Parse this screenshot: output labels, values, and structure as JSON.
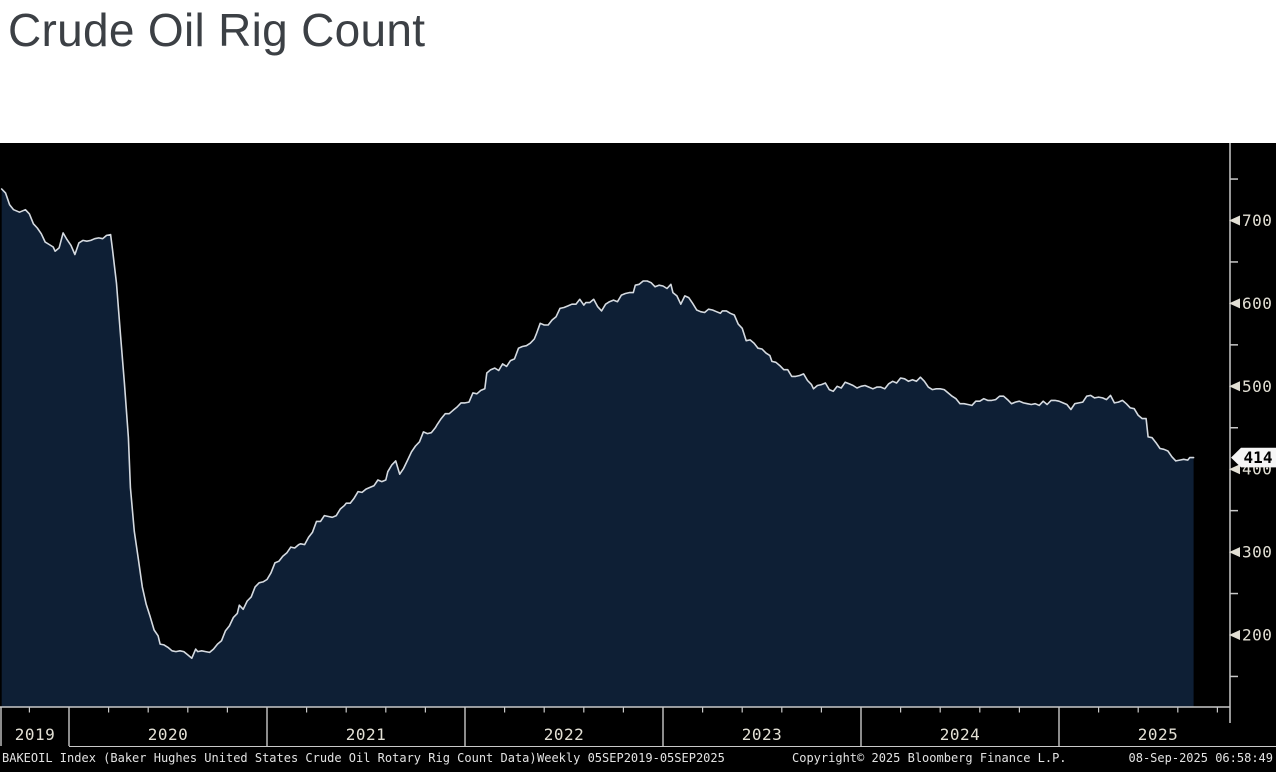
{
  "page": {
    "title": "Crude Oil Rig Count"
  },
  "style": {
    "page_bg": "#ffffff",
    "title_color": "#3c4045",
    "chart_bg": "#000000",
    "area_fill": "#0e1f35",
    "line_color": "#d5dae0",
    "axis_color": "#c9c9c9",
    "tick_label_color": "#e3e0d5",
    "footer_text_color": "#e3e3e3",
    "badge_bg": "#f5f5f5",
    "badge_text": "#000000"
  },
  "chart_data": {
    "type": "area",
    "title": "Crude Oil Rig Count",
    "series_name": "BAKEOIL Index - Baker Hughes United States Crude Oil Rotary Rig Count",
    "x_unit": "decimal_year",
    "xlim": [
      2019.65,
      2025.72
    ],
    "ylim": [
      113,
      793
    ],
    "grid": false,
    "legend": "none",
    "y_axis_side": "right",
    "y_ticks": [
      200,
      300,
      400,
      500,
      600,
      700
    ],
    "y_minor_ticks": [
      150,
      250,
      350,
      450,
      550,
      650,
      750
    ],
    "x_year_dividers": [
      2020,
      2021,
      2022,
      2023,
      2024,
      2025
    ],
    "x_year_labels": [
      "2019",
      "2020",
      "2021",
      "2022",
      "2023",
      "2024",
      "2025"
    ],
    "last_value": 414,
    "last_value_label": "414",
    "points": [
      [
        2019.66,
        738
      ],
      [
        2019.68,
        733
      ],
      [
        2019.7,
        719
      ],
      [
        2019.72,
        713
      ],
      [
        2019.75,
        710
      ],
      [
        2019.78,
        713
      ],
      [
        2019.8,
        708
      ],
      [
        2019.82,
        696
      ],
      [
        2019.84,
        691
      ],
      [
        2019.86,
        684
      ],
      [
        2019.88,
        674
      ],
      [
        2019.9,
        671
      ],
      [
        2019.92,
        668
      ],
      [
        2019.93,
        663
      ],
      [
        2019.95,
        667
      ],
      [
        2019.97,
        685
      ],
      [
        2019.99,
        677
      ],
      [
        2020.01,
        670
      ],
      [
        2020.03,
        659
      ],
      [
        2020.05,
        673
      ],
      [
        2020.07,
        676
      ],
      [
        2020.09,
        675
      ],
      [
        2020.11,
        676
      ],
      [
        2020.13,
        678
      ],
      [
        2020.15,
        679
      ],
      [
        2020.17,
        678
      ],
      [
        2020.19,
        682
      ],
      [
        2020.21,
        683
      ],
      [
        2020.22,
        664
      ],
      [
        2020.24,
        624
      ],
      [
        2020.26,
        562
      ],
      [
        2020.28,
        504
      ],
      [
        2020.3,
        438
      ],
      [
        2020.31,
        378
      ],
      [
        2020.33,
        325
      ],
      [
        2020.35,
        292
      ],
      [
        2020.37,
        258
      ],
      [
        2020.39,
        237
      ],
      [
        2020.41,
        222
      ],
      [
        2020.43,
        206
      ],
      [
        2020.45,
        199
      ],
      [
        2020.46,
        189
      ],
      [
        2020.48,
        188
      ],
      [
        2020.5,
        185
      ],
      [
        2020.52,
        181
      ],
      [
        2020.54,
        180
      ],
      [
        2020.56,
        181
      ],
      [
        2020.58,
        180
      ],
      [
        2020.6,
        176
      ],
      [
        2020.62,
        172
      ],
      [
        2020.64,
        183
      ],
      [
        2020.65,
        180
      ],
      [
        2020.67,
        181
      ],
      [
        2020.69,
        180
      ],
      [
        2020.71,
        179
      ],
      [
        2020.73,
        183
      ],
      [
        2020.75,
        189
      ],
      [
        2020.77,
        193
      ],
      [
        2020.79,
        205
      ],
      [
        2020.81,
        211
      ],
      [
        2020.83,
        221
      ],
      [
        2020.85,
        226
      ],
      [
        2020.86,
        236
      ],
      [
        2020.88,
        231
      ],
      [
        2020.9,
        241
      ],
      [
        2020.92,
        246
      ],
      [
        2020.94,
        258
      ],
      [
        2020.96,
        263
      ],
      [
        2020.98,
        264
      ],
      [
        2021.0,
        267
      ],
      [
        2021.02,
        275
      ],
      [
        2021.04,
        287
      ],
      [
        2021.06,
        289
      ],
      [
        2021.08,
        295
      ],
      [
        2021.1,
        299
      ],
      [
        2021.12,
        306
      ],
      [
        2021.14,
        305
      ],
      [
        2021.16,
        309
      ],
      [
        2021.17,
        310
      ],
      [
        2021.19,
        309
      ],
      [
        2021.21,
        318
      ],
      [
        2021.23,
        324
      ],
      [
        2021.25,
        337
      ],
      [
        2021.27,
        337
      ],
      [
        2021.29,
        344
      ],
      [
        2021.31,
        343
      ],
      [
        2021.33,
        342
      ],
      [
        2021.35,
        344
      ],
      [
        2021.37,
        352
      ],
      [
        2021.39,
        356
      ],
      [
        2021.4,
        359
      ],
      [
        2021.42,
        359
      ],
      [
        2021.44,
        365
      ],
      [
        2021.46,
        373
      ],
      [
        2021.48,
        372
      ],
      [
        2021.5,
        376
      ],
      [
        2021.52,
        378
      ],
      [
        2021.54,
        380
      ],
      [
        2021.56,
        387
      ],
      [
        2021.58,
        385
      ],
      [
        2021.6,
        387
      ],
      [
        2021.61,
        397
      ],
      [
        2021.63,
        405
      ],
      [
        2021.65,
        410
      ],
      [
        2021.67,
        394
      ],
      [
        2021.69,
        401
      ],
      [
        2021.71,
        411
      ],
      [
        2021.73,
        421
      ],
      [
        2021.75,
        428
      ],
      [
        2021.77,
        433
      ],
      [
        2021.79,
        445
      ],
      [
        2021.81,
        443
      ],
      [
        2021.83,
        444
      ],
      [
        2021.85,
        450
      ],
      [
        2021.86,
        454
      ],
      [
        2021.88,
        461
      ],
      [
        2021.9,
        467
      ],
      [
        2021.92,
        467
      ],
      [
        2021.94,
        471
      ],
      [
        2021.96,
        475
      ],
      [
        2021.98,
        480
      ],
      [
        2022.0,
        480
      ],
      [
        2022.02,
        481
      ],
      [
        2022.04,
        492
      ],
      [
        2022.06,
        491
      ],
      [
        2022.08,
        495
      ],
      [
        2022.1,
        497
      ],
      [
        2022.11,
        516
      ],
      [
        2022.13,
        520
      ],
      [
        2022.15,
        522
      ],
      [
        2022.17,
        519
      ],
      [
        2022.19,
        527
      ],
      [
        2022.21,
        524
      ],
      [
        2022.23,
        531
      ],
      [
        2022.25,
        533
      ],
      [
        2022.27,
        546
      ],
      [
        2022.29,
        548
      ],
      [
        2022.31,
        549
      ],
      [
        2022.33,
        552
      ],
      [
        2022.35,
        557
      ],
      [
        2022.36,
        563
      ],
      [
        2022.38,
        576
      ],
      [
        2022.4,
        574
      ],
      [
        2022.42,
        574
      ],
      [
        2022.44,
        580
      ],
      [
        2022.46,
        584
      ],
      [
        2022.48,
        594
      ],
      [
        2022.5,
        595
      ],
      [
        2022.52,
        597
      ],
      [
        2022.54,
        599
      ],
      [
        2022.56,
        599
      ],
      [
        2022.58,
        605
      ],
      [
        2022.6,
        598
      ],
      [
        2022.61,
        601
      ],
      [
        2022.63,
        601
      ],
      [
        2022.65,
        605
      ],
      [
        2022.67,
        596
      ],
      [
        2022.69,
        591
      ],
      [
        2022.71,
        599
      ],
      [
        2022.73,
        602
      ],
      [
        2022.75,
        604
      ],
      [
        2022.77,
        602
      ],
      [
        2022.79,
        610
      ],
      [
        2022.81,
        612
      ],
      [
        2022.83,
        613
      ],
      [
        2022.85,
        613
      ],
      [
        2022.86,
        622
      ],
      [
        2022.88,
        623
      ],
      [
        2022.9,
        627
      ],
      [
        2022.92,
        627
      ],
      [
        2022.94,
        625
      ],
      [
        2022.96,
        620
      ],
      [
        2022.98,
        622
      ],
      [
        2023.0,
        621
      ],
      [
        2023.02,
        618
      ],
      [
        2023.04,
        623
      ],
      [
        2023.05,
        613
      ],
      [
        2023.07,
        609
      ],
      [
        2023.09,
        599
      ],
      [
        2023.11,
        609
      ],
      [
        2023.13,
        607
      ],
      [
        2023.15,
        600
      ],
      [
        2023.17,
        592
      ],
      [
        2023.19,
        590
      ],
      [
        2023.21,
        589
      ],
      [
        2023.23,
        593
      ],
      [
        2023.25,
        592
      ],
      [
        2023.27,
        590
      ],
      [
        2023.29,
        588
      ],
      [
        2023.3,
        591
      ],
      [
        2023.32,
        591
      ],
      [
        2023.34,
        588
      ],
      [
        2023.36,
        586
      ],
      [
        2023.38,
        575
      ],
      [
        2023.4,
        570
      ],
      [
        2023.42,
        555
      ],
      [
        2023.44,
        556
      ],
      [
        2023.46,
        552
      ],
      [
        2023.48,
        546
      ],
      [
        2023.5,
        545
      ],
      [
        2023.52,
        540
      ],
      [
        2023.54,
        537
      ],
      [
        2023.55,
        530
      ],
      [
        2023.57,
        529
      ],
      [
        2023.59,
        525
      ],
      [
        2023.61,
        520
      ],
      [
        2023.63,
        520
      ],
      [
        2023.65,
        512
      ],
      [
        2023.67,
        512
      ],
      [
        2023.69,
        513
      ],
      [
        2023.71,
        515
      ],
      [
        2023.73,
        507
      ],
      [
        2023.75,
        502
      ],
      [
        2023.76,
        497
      ],
      [
        2023.78,
        501
      ],
      [
        2023.8,
        502
      ],
      [
        2023.82,
        504
      ],
      [
        2023.84,
        496
      ],
      [
        2023.86,
        494
      ],
      [
        2023.88,
        500
      ],
      [
        2023.9,
        498
      ],
      [
        2023.92,
        505
      ],
      [
        2023.94,
        503
      ],
      [
        2023.96,
        501
      ],
      [
        2023.98,
        498
      ],
      [
        2024.0,
        500
      ],
      [
        2024.02,
        501
      ],
      [
        2024.04,
        499
      ],
      [
        2024.06,
        497
      ],
      [
        2024.08,
        499
      ],
      [
        2024.1,
        499
      ],
      [
        2024.12,
        497
      ],
      [
        2024.14,
        503
      ],
      [
        2024.16,
        506
      ],
      [
        2024.18,
        504
      ],
      [
        2024.2,
        510
      ],
      [
        2024.22,
        509
      ],
      [
        2024.24,
        506
      ],
      [
        2024.26,
        508
      ],
      [
        2024.28,
        506
      ],
      [
        2024.3,
        511
      ],
      [
        2024.32,
        506
      ],
      [
        2024.34,
        499
      ],
      [
        2024.36,
        496
      ],
      [
        2024.38,
        497
      ],
      [
        2024.4,
        497
      ],
      [
        2024.42,
        496
      ],
      [
        2024.44,
        492
      ],
      [
        2024.46,
        488
      ],
      [
        2024.48,
        485
      ],
      [
        2024.5,
        479
      ],
      [
        2024.52,
        479
      ],
      [
        2024.54,
        478
      ],
      [
        2024.56,
        477
      ],
      [
        2024.58,
        482
      ],
      [
        2024.6,
        482
      ],
      [
        2024.62,
        485
      ],
      [
        2024.64,
        483
      ],
      [
        2024.66,
        483
      ],
      [
        2024.68,
        484
      ],
      [
        2024.7,
        488
      ],
      [
        2024.72,
        488
      ],
      [
        2024.74,
        484
      ],
      [
        2024.76,
        479
      ],
      [
        2024.78,
        481
      ],
      [
        2024.8,
        482
      ],
      [
        2024.82,
        480
      ],
      [
        2024.84,
        479
      ],
      [
        2024.86,
        478
      ],
      [
        2024.88,
        479
      ],
      [
        2024.9,
        477
      ],
      [
        2024.92,
        482
      ],
      [
        2024.94,
        478
      ],
      [
        2024.96,
        483
      ],
      [
        2024.98,
        483
      ],
      [
        2025.0,
        482
      ],
      [
        2025.02,
        480
      ],
      [
        2025.04,
        478
      ],
      [
        2025.06,
        472
      ],
      [
        2025.08,
        479
      ],
      [
        2025.1,
        480
      ],
      [
        2025.12,
        481
      ],
      [
        2025.14,
        488
      ],
      [
        2025.16,
        489
      ],
      [
        2025.18,
        486
      ],
      [
        2025.2,
        487
      ],
      [
        2025.22,
        486
      ],
      [
        2025.24,
        484
      ],
      [
        2025.26,
        489
      ],
      [
        2025.28,
        480
      ],
      [
        2025.3,
        481
      ],
      [
        2025.32,
        483
      ],
      [
        2025.34,
        479
      ],
      [
        2025.36,
        474
      ],
      [
        2025.38,
        473
      ],
      [
        2025.4,
        465
      ],
      [
        2025.42,
        461
      ],
      [
        2025.44,
        461
      ],
      [
        2025.45,
        439
      ],
      [
        2025.47,
        438
      ],
      [
        2025.49,
        432
      ],
      [
        2025.51,
        425
      ],
      [
        2025.53,
        424
      ],
      [
        2025.55,
        422
      ],
      [
        2025.57,
        415
      ],
      [
        2025.59,
        410
      ],
      [
        2025.61,
        411
      ],
      [
        2025.63,
        412
      ],
      [
        2025.65,
        411
      ],
      [
        2025.66,
        414
      ],
      [
        2025.68,
        414
      ]
    ]
  },
  "footer": {
    "source": "BAKEOIL Index (Baker Hughes United States Crude Oil Rotary Rig Count Data)",
    "period": "Weekly 05SEP2019-05SEP2025",
    "copyright": "Copyright© 2025 Bloomberg Finance L.P.",
    "timestamp": "08-Sep-2025 06:58:49"
  }
}
